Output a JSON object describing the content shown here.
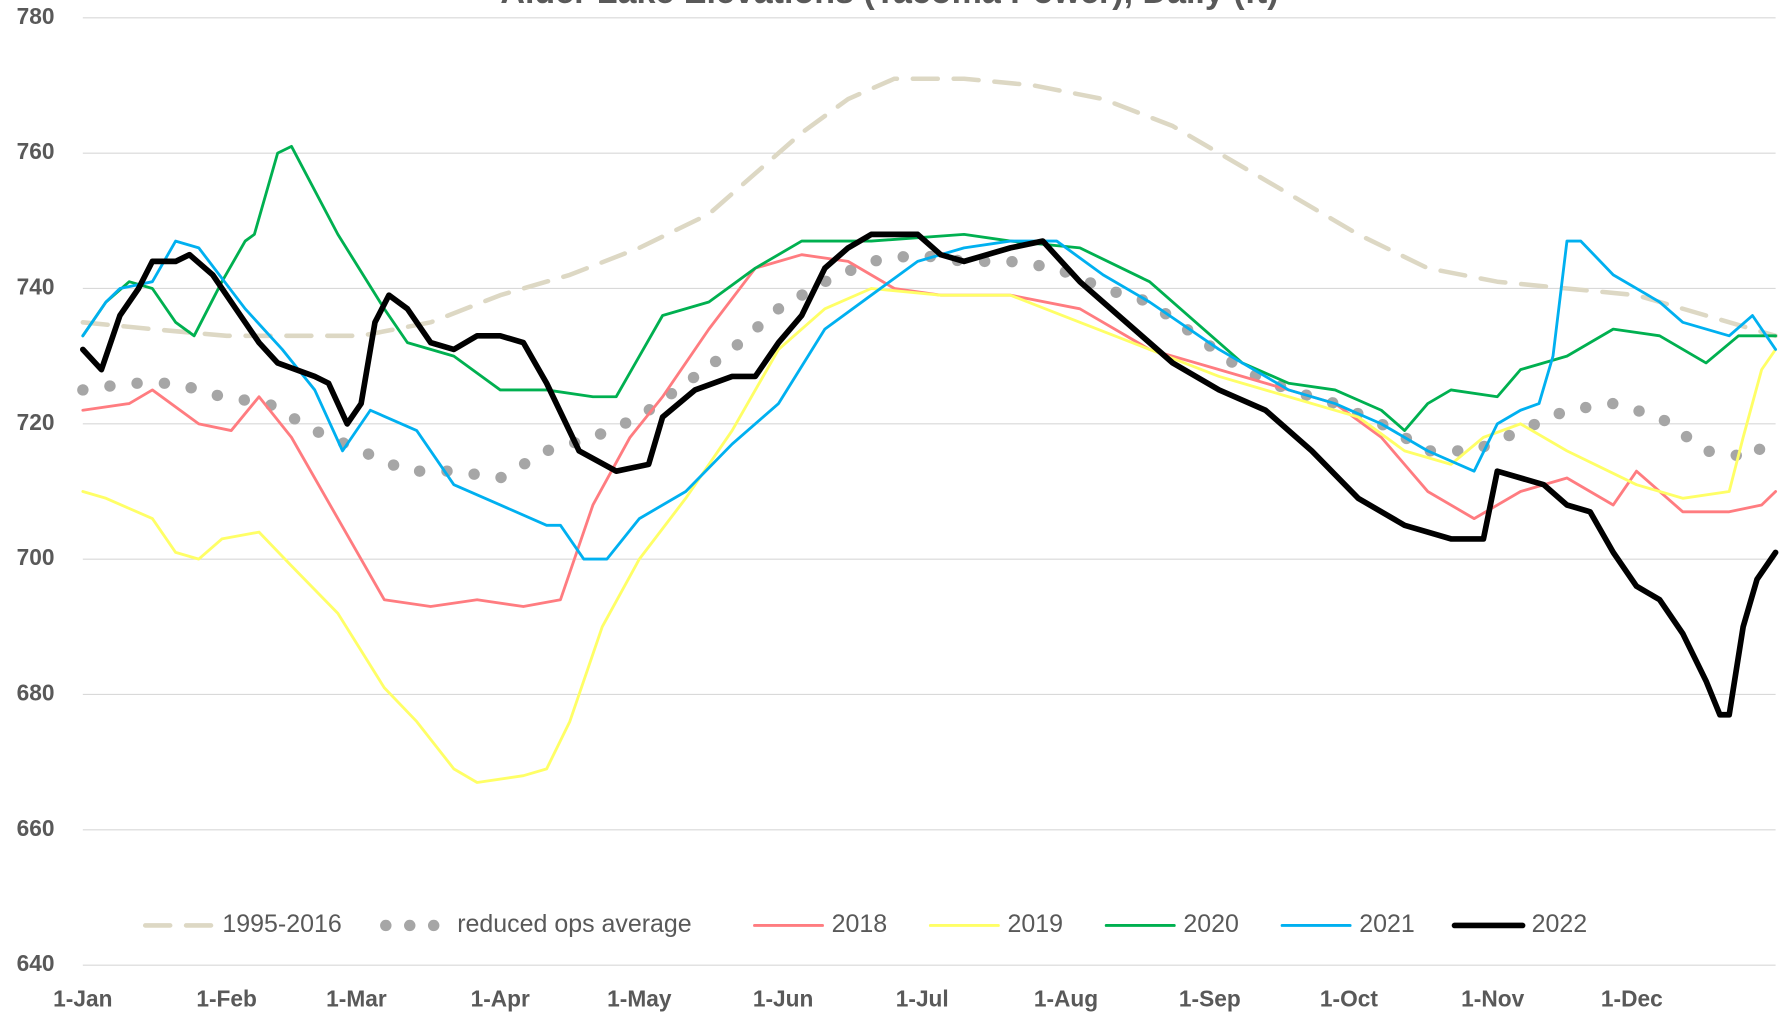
{
  "chart_data": {
    "type": "line",
    "title": "Alder Lake Elevations (Tacoma Power), Daily (ft)",
    "xlim": [
      0,
      365
    ],
    "xticks": [
      {
        "value": 0,
        "label": "1-Jan"
      },
      {
        "value": 31,
        "label": "1-Feb"
      },
      {
        "value": 59,
        "label": "1-Mar"
      },
      {
        "value": 90,
        "label": "1-Apr"
      },
      {
        "value": 120,
        "label": "1-May"
      },
      {
        "value": 151,
        "label": "1-Jun"
      },
      {
        "value": 181,
        "label": "1-Jul"
      },
      {
        "value": 212,
        "label": "1-Aug"
      },
      {
        "value": 243,
        "label": "1-Sep"
      },
      {
        "value": 273,
        "label": "1-Oct"
      },
      {
        "value": 304,
        "label": "1-Nov"
      },
      {
        "value": 334,
        "label": "1-Dec"
      }
    ],
    "ylim": [
      640,
      780
    ],
    "yticks": [
      640,
      660,
      680,
      700,
      720,
      740,
      760,
      780
    ],
    "grid": true,
    "legend": "bottom",
    "series": [
      {
        "name": "1995-2016",
        "color": "#ddd8c4",
        "style": "dashed",
        "width": 4,
        "x": [
          0,
          15,
          31,
          45,
          60,
          75,
          90,
          105,
          120,
          135,
          145,
          155,
          165,
          175,
          190,
          205,
          220,
          235,
          245,
          260,
          275,
          290,
          305,
          320,
          335,
          350,
          365
        ],
        "values": [
          735,
          734,
          733,
          733,
          733,
          735,
          739,
          742,
          746,
          751,
          757,
          763,
          768,
          771,
          771,
          770,
          768,
          764,
          760,
          754,
          748,
          743,
          741,
          740,
          739,
          736,
          733
        ]
      },
      {
        "name": "reduced ops average",
        "color": "#a6a6a6",
        "style": "dotted",
        "width": 10,
        "x": [
          0,
          10,
          20,
          30,
          40,
          50,
          60,
          70,
          80,
          90,
          100,
          110,
          120,
          130,
          140,
          150,
          160,
          170,
          180,
          190,
          200,
          210,
          220,
          230,
          240,
          250,
          260,
          270,
          280,
          290,
          300,
          310,
          320,
          330,
          340,
          350,
          360,
          365
        ],
        "values": [
          725,
          726,
          726,
          724,
          723,
          719,
          716,
          713,
          713,
          712,
          716,
          718,
          721,
          726,
          731,
          737,
          741,
          744,
          745,
          744,
          744,
          743,
          740,
          738,
          733,
          728,
          725,
          723,
          720,
          716,
          716,
          719,
          722,
          723,
          721,
          716,
          715,
          719
        ]
      },
      {
        "name": "2018",
        "color": "#ff7c80",
        "style": "solid",
        "width": 2.5,
        "x": [
          0,
          10,
          15,
          25,
          32,
          38,
          45,
          55,
          65,
          75,
          85,
          95,
          103,
          110,
          118,
          125,
          135,
          145,
          155,
          165,
          175,
          185,
          200,
          215,
          230,
          245,
          260,
          270,
          280,
          290,
          300,
          310,
          320,
          330,
          335,
          345,
          355,
          362,
          365
        ],
        "values": [
          722,
          723,
          725,
          720,
          719,
          724,
          718,
          706,
          694,
          693,
          694,
          693,
          694,
          708,
          718,
          724,
          734,
          743,
          745,
          744,
          740,
          739,
          739,
          737,
          731,
          728,
          725,
          723,
          718,
          710,
          706,
          710,
          712,
          708,
          713,
          707,
          707,
          708,
          710
        ]
      },
      {
        "name": "2019",
        "color": "#ffff66",
        "style": "solid",
        "width": 2.5,
        "x": [
          0,
          5,
          15,
          20,
          25,
          30,
          38,
          45,
          55,
          65,
          72,
          80,
          85,
          95,
          100,
          105,
          112,
          120,
          130,
          140,
          150,
          160,
          170,
          185,
          200,
          215,
          230,
          245,
          260,
          275,
          285,
          295,
          302,
          310,
          320,
          335,
          345,
          355,
          358,
          362,
          365
        ],
        "values": [
          710,
          709,
          706,
          701,
          700,
          703,
          704,
          699,
          692,
          681,
          676,
          669,
          667,
          668,
          669,
          676,
          690,
          700,
          709,
          719,
          731,
          737,
          740,
          739,
          739,
          735,
          731,
          727,
          724,
          721,
          716,
          714,
          718,
          720,
          716,
          711,
          709,
          710,
          718,
          728,
          731
        ]
      },
      {
        "name": "2020",
        "color": "#00b050",
        "style": "solid",
        "width": 2.5,
        "x": [
          0,
          5,
          10,
          15,
          20,
          24,
          30,
          35,
          37,
          42,
          45,
          55,
          65,
          70,
          80,
          90,
          100,
          110,
          115,
          125,
          135,
          145,
          155,
          170,
          190,
          200,
          215,
          230,
          240,
          250,
          260,
          270,
          280,
          285,
          290,
          295,
          305,
          310,
          320,
          330,
          340,
          350,
          357,
          365
        ],
        "values": [
          733,
          738,
          741,
          740,
          735,
          733,
          741,
          747,
          748,
          760,
          761,
          748,
          737,
          732,
          730,
          725,
          725,
          724,
          724,
          736,
          738,
          743,
          747,
          747,
          748,
          747,
          746,
          741,
          735,
          729,
          726,
          725,
          722,
          719,
          723,
          725,
          724,
          728,
          730,
          734,
          733,
          729,
          733,
          733
        ]
      },
      {
        "name": "2021",
        "color": "#00b0f0",
        "style": "solid",
        "width": 2.5,
        "x": [
          0,
          5,
          8,
          15,
          20,
          25,
          35,
          43,
          50,
          56,
          62,
          72,
          80,
          90,
          100,
          103,
          108,
          113,
          120,
          130,
          140,
          150,
          160,
          170,
          180,
          190,
          200,
          210,
          220,
          230,
          245,
          260,
          270,
          280,
          290,
          300,
          305,
          310,
          314,
          317,
          320,
          323,
          330,
          340,
          345,
          355,
          360,
          365
        ],
        "values": [
          733,
          738,
          740,
          741,
          747,
          746,
          737,
          731,
          725,
          716,
          722,
          719,
          711,
          708,
          705,
          705,
          700,
          700,
          706,
          710,
          717,
          723,
          734,
          739,
          744,
          746,
          747,
          747,
          742,
          738,
          731,
          725,
          723,
          720,
          716,
          713,
          720,
          722,
          723,
          730,
          747,
          747,
          742,
          738,
          735,
          733,
          736,
          731
        ]
      },
      {
        "name": "2022",
        "color": "#000000",
        "style": "solid",
        "width": 5,
        "x": [
          0,
          4,
          8,
          12,
          15,
          20,
          23,
          28,
          33,
          38,
          42,
          50,
          53,
          57,
          60,
          63,
          66,
          70,
          75,
          80,
          85,
          90,
          95,
          100,
          107,
          115,
          122,
          125,
          132,
          140,
          145,
          150,
          155,
          160,
          165,
          170,
          180,
          185,
          190,
          200,
          207,
          215,
          225,
          235,
          245,
          255,
          265,
          275,
          285,
          295,
          302,
          305,
          315,
          320,
          325,
          330,
          335,
          340,
          345,
          350,
          353,
          355,
          358,
          361,
          365
        ],
        "values": [
          731,
          728,
          736,
          740,
          744,
          744,
          745,
          742,
          737,
          732,
          729,
          727,
          726,
          720,
          723,
          735,
          739,
          737,
          732,
          731,
          733,
          733,
          732,
          726,
          716,
          713,
          714,
          721,
          725,
          727,
          727,
          732,
          736,
          743,
          746,
          748,
          748,
          745,
          744,
          746,
          747,
          741,
          735,
          729,
          725,
          722,
          716,
          709,
          705,
          703,
          703,
          713,
          711,
          708,
          707,
          701,
          696,
          694,
          689,
          682,
          677,
          677,
          690,
          697,
          701
        ]
      }
    ]
  }
}
